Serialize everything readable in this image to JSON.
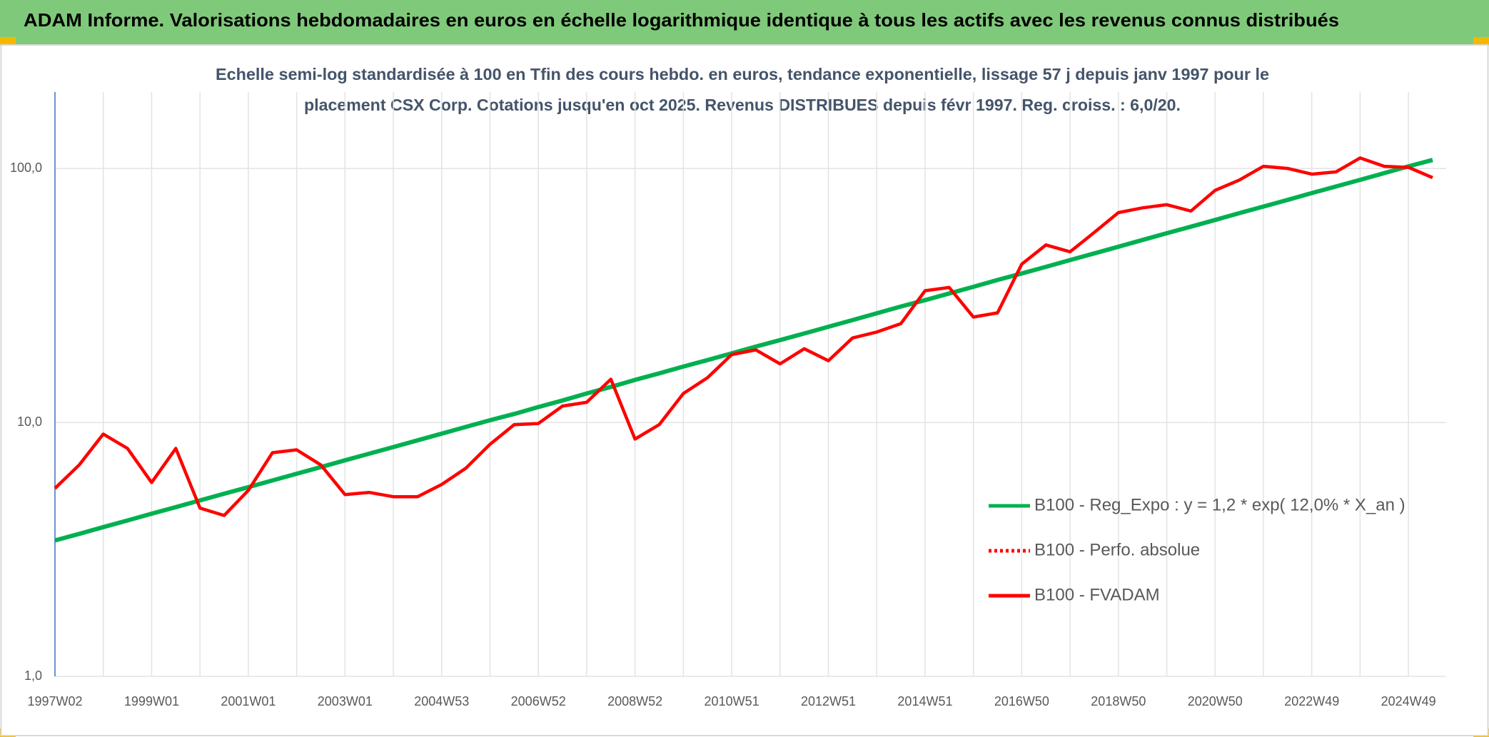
{
  "chart_data": {
    "type": "line",
    "title": "ADAM Informe. Valorisations hebdomadaires en euros en échelle logarithmique identique à tous les actifs avec les revenus connus distribués",
    "subtitle": [
      "Echelle semi-log standardisée à 100 en Tfin des cours hebdo. en euros, tendance exponentielle, lissage 57 j depuis janv 1997 pour le",
      "placement CSX Corp. Cotations jusqu'en oct 2025. Revenus DISTRIBUES depuis févr 1997. Reg. croiss. : 6,0/20."
    ],
    "log_scale": true,
    "grid": true,
    "legend": "right",
    "ylim": [
      1,
      200
    ],
    "yticks": [
      {
        "value": 1,
        "label": "1,0"
      },
      {
        "value": 10,
        "label": "10,0"
      },
      {
        "value": 100,
        "label": "100,0"
      }
    ],
    "categories": [
      "1997W02",
      null,
      null,
      null,
      "1999W01",
      null,
      null,
      null,
      "2001W01",
      null,
      null,
      null,
      "2003W01",
      null,
      null,
      null,
      "2004W53",
      null,
      null,
      null,
      "2006W52",
      null,
      null,
      null,
      "2008W52",
      null,
      null,
      null,
      "2010W51",
      null,
      null,
      null,
      "2012W51",
      null,
      null,
      null,
      "2014W51",
      null,
      null,
      null,
      "2016W50",
      null,
      null,
      null,
      "2018W50",
      null,
      null,
      null,
      "2020W50",
      null,
      null,
      null,
      "2022W49",
      null,
      null,
      null,
      "2024W49",
      null
    ],
    "series": [
      {
        "name": "B100 - Reg_Expo : y = 1,2 * exp( 12,0% *  X_an )",
        "color": "#00b050",
        "style": "solid",
        "values": [
          3.43,
          3.64,
          3.87,
          4.11,
          4.37,
          4.64,
          4.93,
          5.24,
          5.56,
          5.91,
          6.28,
          6.67,
          7.09,
          7.53,
          8.0,
          8.5,
          9.03,
          9.6,
          10.2,
          10.8,
          11.5,
          12.2,
          13.0,
          13.8,
          14.7,
          15.6,
          16.6,
          17.6,
          18.7,
          19.9,
          21.1,
          22.4,
          23.8,
          25.3,
          26.9,
          28.6,
          30.3,
          32.2,
          34.2,
          36.4,
          38.6,
          41.0,
          43.6,
          46.3,
          49.2,
          52.3,
          55.6,
          59.0,
          62.7,
          66.7,
          70.8,
          75.2,
          80.0,
          84.9,
          90.2,
          95.9,
          102,
          108
        ]
      },
      {
        "name": "B100 - Perfo. absolue",
        "color": "#ff0000",
        "style": "dotted",
        "values": [
          null,
          null,
          null,
          null,
          null,
          null,
          null,
          null,
          null,
          null,
          null,
          null,
          null,
          null,
          null,
          null,
          null,
          null,
          null,
          null,
          null,
          null,
          null,
          null,
          null,
          null,
          null,
          null,
          null,
          null,
          null,
          null,
          null,
          null,
          null,
          null,
          null,
          null,
          null,
          null,
          null,
          null,
          null,
          null,
          null,
          null,
          null,
          null,
          null,
          null,
          null,
          null,
          null,
          null,
          null,
          null,
          null,
          null
        ]
      },
      {
        "name": "B100 - FVADAM",
        "color": "#ff0000",
        "style": "solid",
        "values": [
          5.5,
          6.8,
          9.0,
          7.9,
          5.8,
          7.9,
          4.6,
          4.3,
          5.4,
          7.6,
          7.8,
          6.8,
          5.2,
          5.3,
          5.1,
          5.1,
          5.7,
          6.6,
          8.2,
          9.8,
          9.9,
          11.6,
          12.0,
          14.8,
          8.6,
          9.8,
          13.0,
          15.0,
          18.5,
          19.3,
          17.0,
          19.5,
          17.5,
          21.5,
          22.7,
          24.5,
          33,
          34,
          26,
          27,
          42,
          50,
          47,
          56,
          67,
          70,
          72,
          68,
          82,
          90,
          102,
          100,
          95,
          97,
          110,
          102,
          101,
          92
        ]
      }
    ]
  }
}
